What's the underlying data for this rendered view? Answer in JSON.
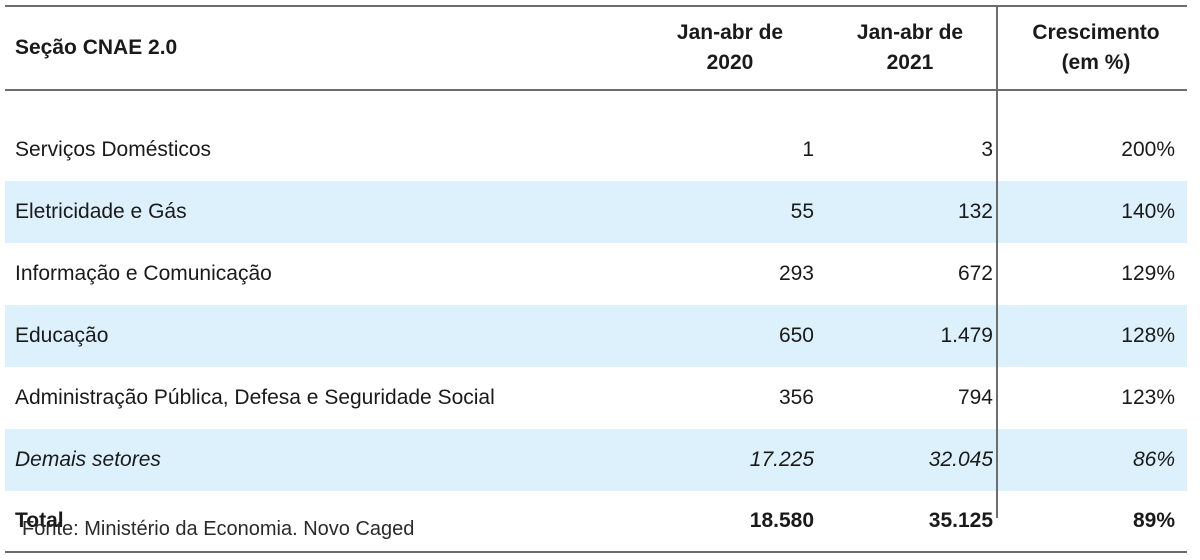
{
  "header": {
    "col1": "Seção CNAE 2.0",
    "col2_line1": "Jan-abr de",
    "col2_line2": "2020",
    "col3_line1": "Jan-abr de",
    "col3_line2": "2021",
    "col4_line1": "Crescimento",
    "col4_line2": "(em %)"
  },
  "rows": [
    {
      "section": "Serviços Domésticos",
      "y2020": "1",
      "y2021": "3",
      "growth": "200%"
    },
    {
      "section": "Eletricidade e Gás",
      "y2020": "55",
      "y2021": "132",
      "growth": "140%"
    },
    {
      "section": "Informação e Comunicação",
      "y2020": "293",
      "y2021": "672",
      "growth": "129%"
    },
    {
      "section": "Educação",
      "y2020": "650",
      "y2021": "1.479",
      "growth": "128%"
    },
    {
      "section": "Administração Pública, Defesa e Seguridade Social",
      "y2020": "356",
      "y2021": "794",
      "growth": "123%"
    },
    {
      "section": "Demais setores",
      "y2020": "17.225",
      "y2021": "32.045",
      "growth": "86%"
    }
  ],
  "total": {
    "section": "Total",
    "y2020": "18.580",
    "y2021": "35.125",
    "growth": "89%"
  },
  "source": "Fonte: Ministério da Economia. Novo Caged",
  "colors": {
    "stripe": "#dcf1fb",
    "rule": "#6d6d6d"
  }
}
